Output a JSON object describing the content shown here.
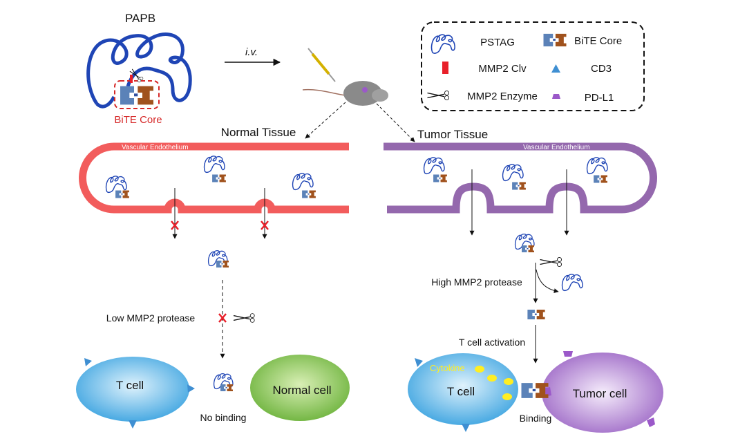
{
  "title": "PAPB",
  "inset": {
    "label": "BiTE Core"
  },
  "route": "i.v.",
  "legend": {
    "items": [
      {
        "icon": "pstag-coil-icon",
        "label": "PSTAG"
      },
      {
        "icon": "bite-core-icon",
        "label": "BiTE Core"
      },
      {
        "icon": "red-bar-icon",
        "label": "MMP2 Clv"
      },
      {
        "icon": "blue-triangle-icon",
        "label": "CD3"
      },
      {
        "icon": "scissors-icon",
        "label": "MMP2 Enzyme"
      },
      {
        "icon": "purple-trapezoid-icon",
        "label": "PD-L1"
      }
    ]
  },
  "normal": {
    "title": "Normal Tissue",
    "vessel_label": "Vascular Endothelium",
    "protease": "Low MMP2 protease",
    "t_cell": "T cell",
    "other_cell": "Normal cell",
    "result": "No binding"
  },
  "tumor": {
    "title": "Tumor Tissue",
    "vessel_label": "Vascular Endothelium",
    "protease": "High MMP2 protease",
    "activation": "T cell activation",
    "cytokine": "Cytokine",
    "t_cell": "T cell",
    "other_cell": "Tumor cell",
    "result": "Binding"
  },
  "colors": {
    "normal_vessel": "#f25c5c",
    "tumor_vessel": "#9468ad",
    "pstag": "#1f45b5",
    "bite_left": "#5b82b8",
    "bite_right": "#a0521d",
    "mmp2_clv": "#e8202a",
    "cd3": "#3f8fd2",
    "pdl1": "#9b59c9",
    "cytokine": "#ffee22"
  }
}
